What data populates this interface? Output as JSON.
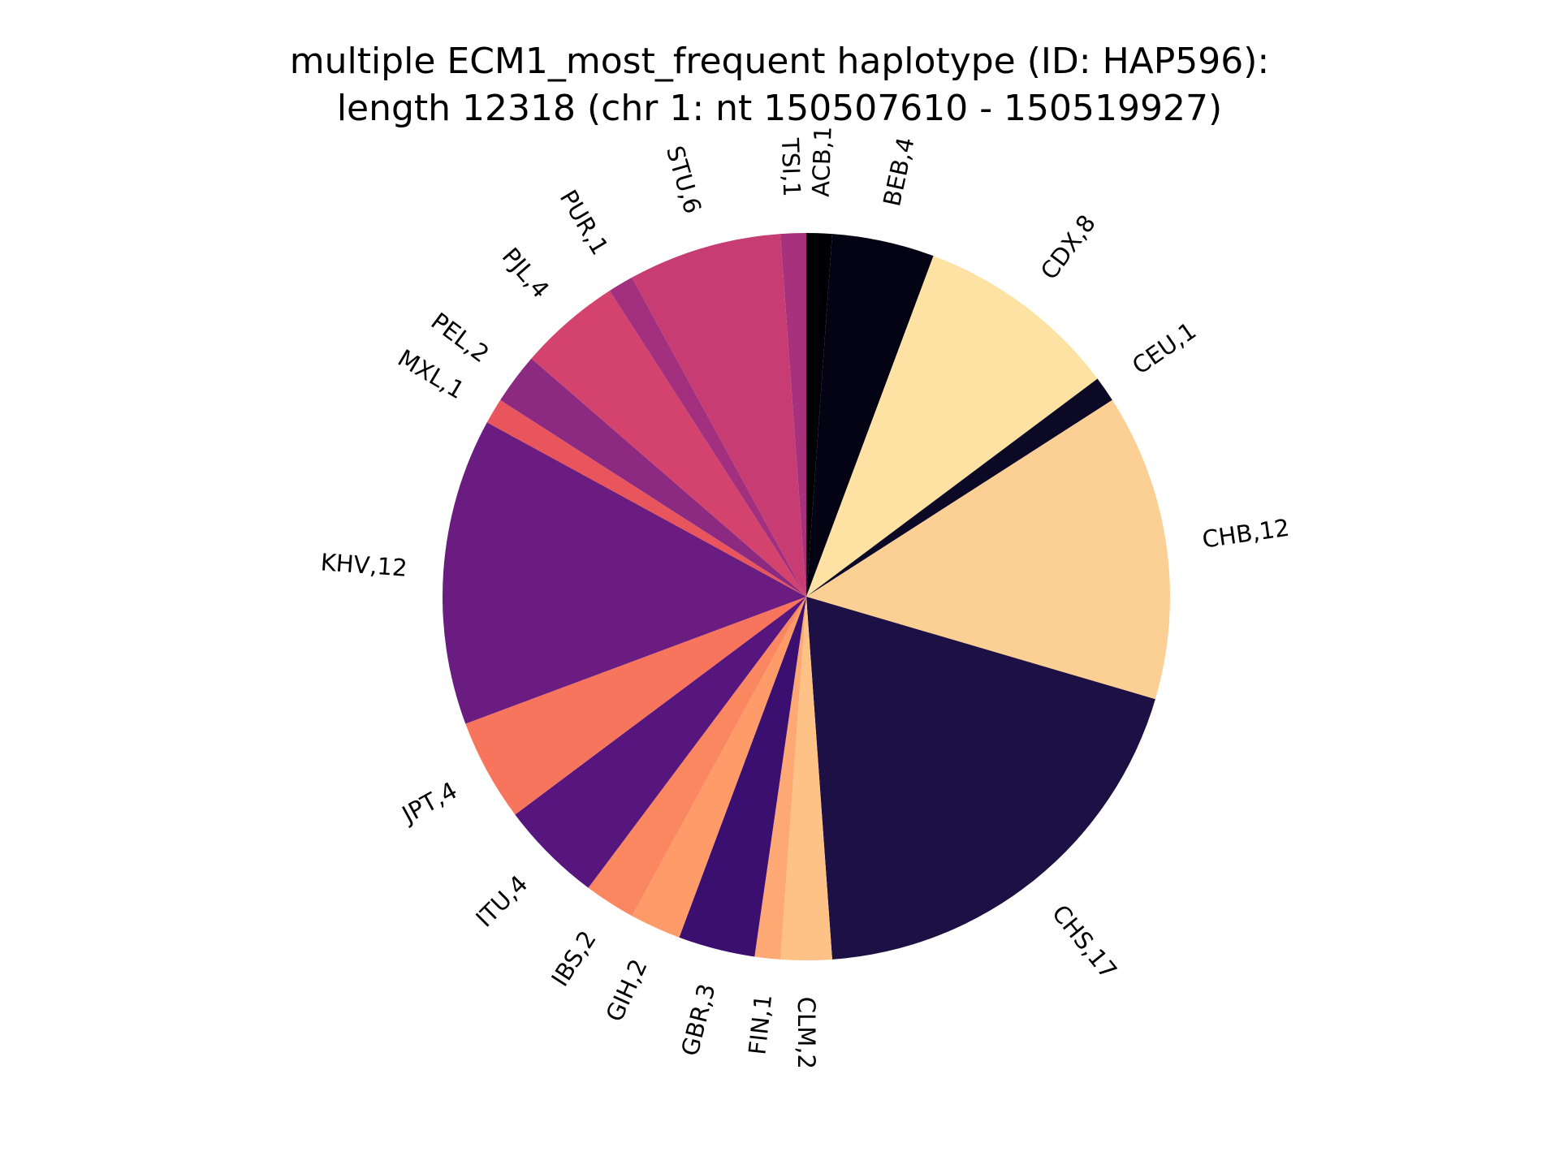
{
  "chart_data": {
    "type": "pie",
    "title_lines": [
      "multiple ECM1_most_frequent haplotype (ID: HAP596):",
      "length 12318 (chr 1: nt 150507610 - 150519927)"
    ],
    "start_angle_deg": 90,
    "direction": "clockwise",
    "label_format": "{name},{value}",
    "slices": [
      {
        "name": "ACB",
        "value": 1,
        "color": "#000004"
      },
      {
        "name": "BEB",
        "value": 4,
        "color": "#040313"
      },
      {
        "name": "CDX",
        "value": 8,
        "color": "#fde2a3"
      },
      {
        "name": "CEU",
        "value": 1,
        "color": "#0c0926"
      },
      {
        "name": "CHB",
        "value": 12,
        "color": "#fcd095"
      },
      {
        "name": "CHS",
        "value": 17,
        "color": "#1c1044"
      },
      {
        "name": "CLM",
        "value": 2,
        "color": "#fec287"
      },
      {
        "name": "FIN",
        "value": 1,
        "color": "#fea973"
      },
      {
        "name": "GBR",
        "value": 3,
        "color": "#3b0f70"
      },
      {
        "name": "GIH",
        "value": 2,
        "color": "#fe9b69"
      },
      {
        "name": "IBS",
        "value": 2,
        "color": "#fb8761"
      },
      {
        "name": "ITU",
        "value": 4,
        "color": "#57157e"
      },
      {
        "name": "JPT",
        "value": 4,
        "color": "#f7755c"
      },
      {
        "name": "KHV",
        "value": 12,
        "color": "#6a1c81"
      },
      {
        "name": "MXL",
        "value": 1,
        "color": "#e8555d"
      },
      {
        "name": "PEL",
        "value": 2,
        "color": "#8c2981"
      },
      {
        "name": "PJL",
        "value": 4,
        "color": "#d3436e"
      },
      {
        "name": "PUR",
        "value": 1,
        "color": "#a3307e"
      },
      {
        "name": "STU",
        "value": 6,
        "color": "#c73d73"
      },
      {
        "name": "TSI",
        "value": 1,
        "color": "#a7317d"
      }
    ]
  }
}
